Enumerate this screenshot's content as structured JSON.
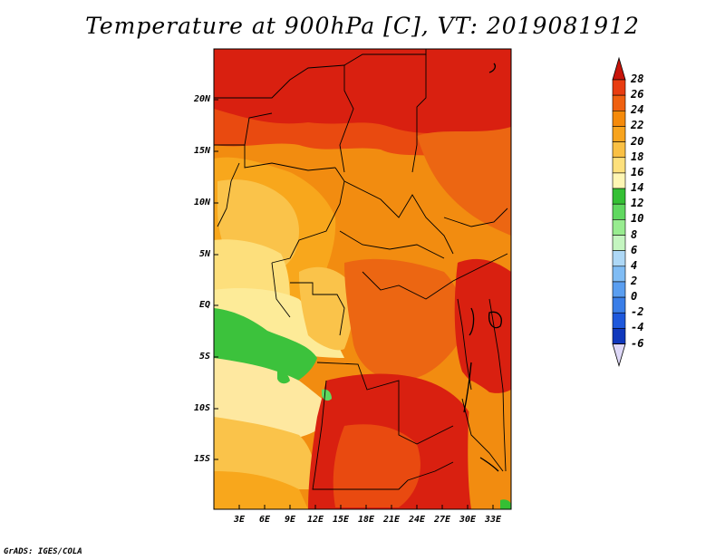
{
  "title": "Temperature at 900hPa [C], VT: 2019081912",
  "credit": "GrADS: IGES/COLA",
  "map": {
    "variable": "Temperature at 900hPa",
    "units": "C",
    "valid_time": "2019081912",
    "lat_labels": [
      "20N",
      "15N",
      "10N",
      "5N",
      "EQ",
      "5S",
      "10S",
      "15S"
    ],
    "lon_labels": [
      "3E",
      "6E",
      "9E",
      "12E",
      "15E",
      "18E",
      "21E",
      "24E",
      "27E",
      "30E",
      "33E"
    ]
  },
  "colorbar": {
    "labels": [
      "28",
      "26",
      "24",
      "22",
      "20",
      "18",
      "16",
      "14",
      "12",
      "10",
      "8",
      "6",
      "4",
      "2",
      "0",
      "-2",
      "-4",
      "-6"
    ],
    "colors": [
      "#d42010",
      "#e83c10",
      "#ef6010",
      "#f58a0a",
      "#f8a41e",
      "#fac044",
      "#fde07c",
      "#fef6b4",
      "#34c034",
      "#60d860",
      "#98ec90",
      "#c4f5c0",
      "#aed8f6",
      "#80bcf4",
      "#5a9ef0",
      "#3a7ee8",
      "#1e58dc",
      "#1038bc",
      "#0a1c8a"
    ],
    "over_color": "#c8140a",
    "under_color": "#ded8f8"
  }
}
